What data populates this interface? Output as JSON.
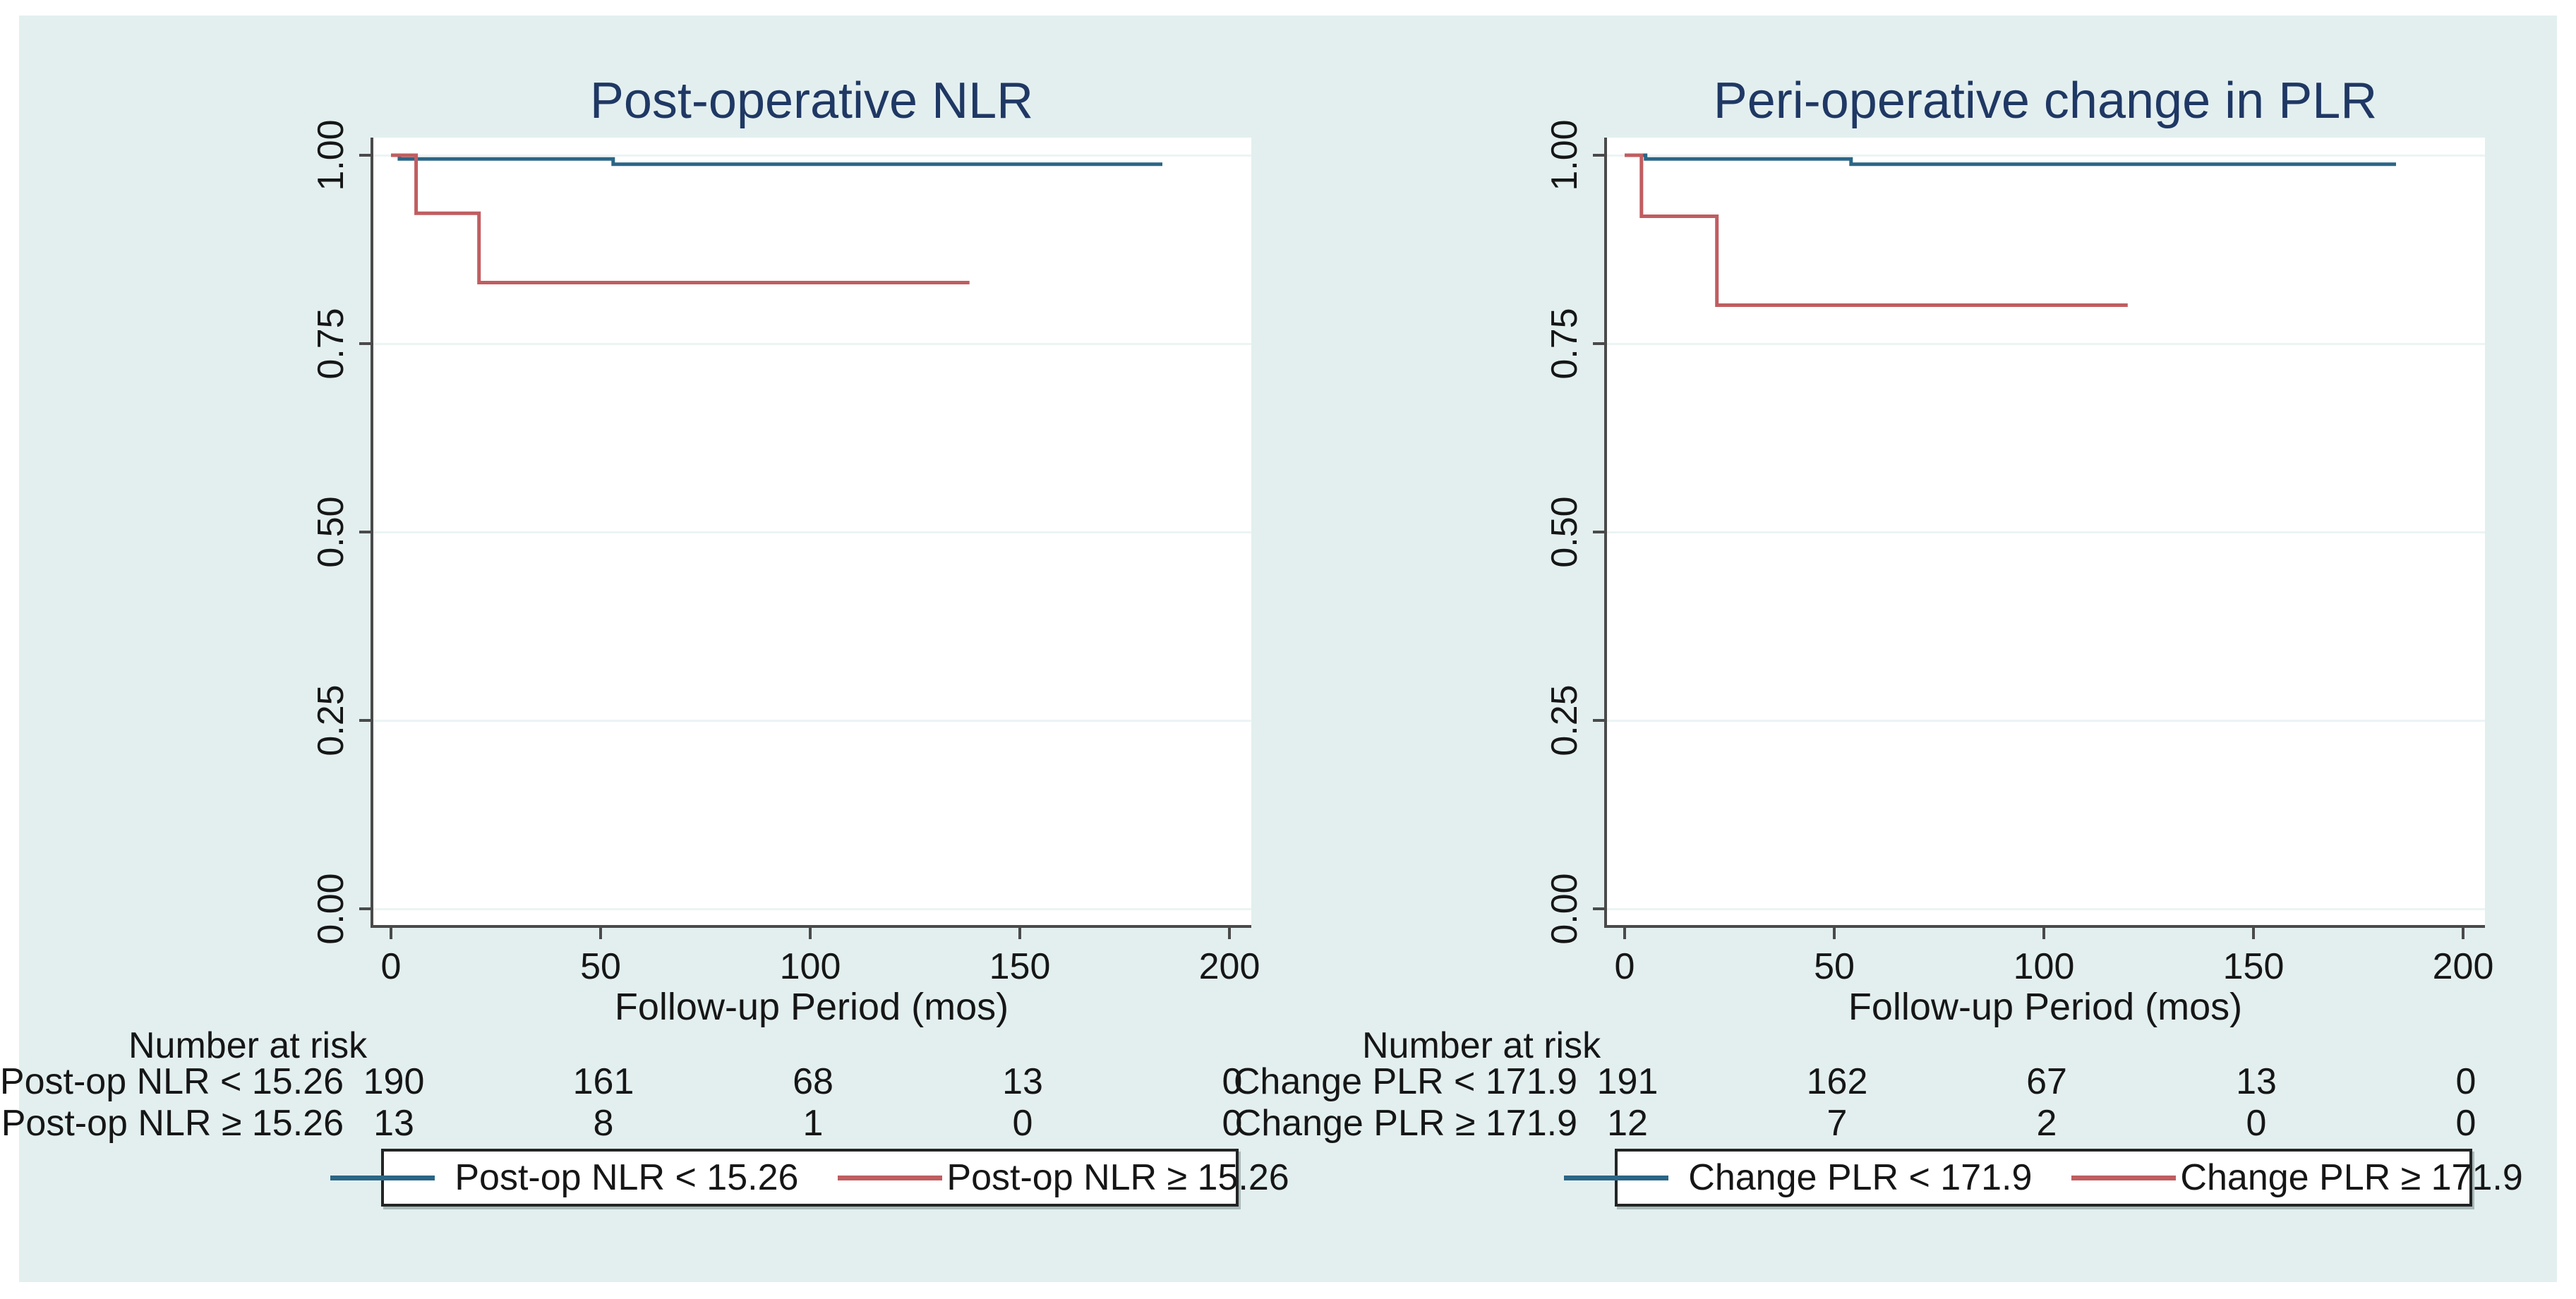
{
  "figure": {
    "background_color": "#e3efef",
    "plot_background_color": "#ffffff",
    "grid_color": "#ecf4f4",
    "axis_color": "#4a4a4a",
    "title_color": "#1f3864",
    "text_color": "#161616",
    "low_group_color": "#2a6686",
    "high_group_color": "#c05d60"
  },
  "chart_data": [
    {
      "type": "line",
      "subtype": "kaplan-meier-step",
      "title": "Post-operative NLR",
      "xlabel": "Follow-up Period (mos)",
      "ylabel": "",
      "xlim": [
        0,
        210
      ],
      "ylim": [
        0,
        1.02
      ],
      "grid": "horizontal",
      "legend_position": "bottom",
      "xticks": [
        0,
        50,
        100,
        150,
        200
      ],
      "ytick_values": [
        1.0,
        0.75,
        0.5,
        0.25,
        0.0
      ],
      "ytick_labels": [
        "1.00",
        "0.75",
        "0.50",
        "0.25",
        "0.00"
      ],
      "series": [
        {
          "name": "Post-op NLR < 15.26",
          "color": "#2a6686",
          "step_points": [
            [
              0,
              1.0
            ],
            [
              2,
              1.0
            ],
            [
              2,
              0.995
            ],
            [
              53,
              0.995
            ],
            [
              53,
              0.988
            ],
            [
              184,
              0.988
            ]
          ]
        },
        {
          "name": "Post-op NLR ≥ 15.26",
          "color": "#c05d60",
          "step_points": [
            [
              0,
              1.0
            ],
            [
              6,
              1.0
            ],
            [
              6,
              0.923
            ],
            [
              21,
              0.923
            ],
            [
              21,
              0.831
            ],
            [
              138,
              0.831
            ]
          ]
        }
      ],
      "number_at_risk": {
        "header": "Number at risk",
        "times": [
          0,
          50,
          100,
          150,
          200
        ],
        "rows": [
          {
            "label": "Post-op NLR < 15.26",
            "counts": [
              190,
              161,
              68,
              13,
              0
            ]
          },
          {
            "label": "Post-op NLR ≥ 15.26",
            "counts": [
              13,
              8,
              1,
              0,
              0
            ]
          }
        ]
      },
      "legend": [
        "Post-op NLR < 15.26",
        "Post-op NLR ≥ 15.26"
      ]
    },
    {
      "type": "line",
      "subtype": "kaplan-meier-step",
      "title": "Peri-operative change in PLR",
      "xlabel": "Follow-up Period (mos)",
      "ylabel": "",
      "xlim": [
        0,
        210
      ],
      "ylim": [
        0,
        1.02
      ],
      "grid": "horizontal",
      "legend_position": "bottom",
      "xticks": [
        0,
        50,
        100,
        150,
        200
      ],
      "ytick_values": [
        1.0,
        0.75,
        0.5,
        0.25,
        0.0
      ],
      "ytick_labels": [
        "1.00",
        "0.75",
        "0.50",
        "0.25",
        "0.00"
      ],
      "series": [
        {
          "name": "Change PLR < 171.9",
          "color": "#2a6686",
          "step_points": [
            [
              0,
              1.0
            ],
            [
              5,
              1.0
            ],
            [
              5,
              0.995
            ],
            [
              54,
              0.995
            ],
            [
              54,
              0.988
            ],
            [
              184,
              0.988
            ]
          ]
        },
        {
          "name": "Change PLR ≥ 171.9",
          "color": "#c05d60",
          "step_points": [
            [
              0,
              1.0
            ],
            [
              4,
              1.0
            ],
            [
              4,
              0.919
            ],
            [
              22,
              0.919
            ],
            [
              22,
              0.801
            ],
            [
              120,
              0.801
            ]
          ]
        }
      ],
      "number_at_risk": {
        "header": "Number at risk",
        "times": [
          0,
          50,
          100,
          150,
          200
        ],
        "rows": [
          {
            "label": "Change PLR < 171.9",
            "counts": [
              191,
              162,
              67,
              13,
              0
            ]
          },
          {
            "label": "Change PLR ≥ 171.9",
            "counts": [
              12,
              7,
              2,
              0,
              0
            ]
          }
        ]
      },
      "legend": [
        "Change PLR < 171.9",
        "Change PLR ≥ 171.9"
      ]
    }
  ]
}
